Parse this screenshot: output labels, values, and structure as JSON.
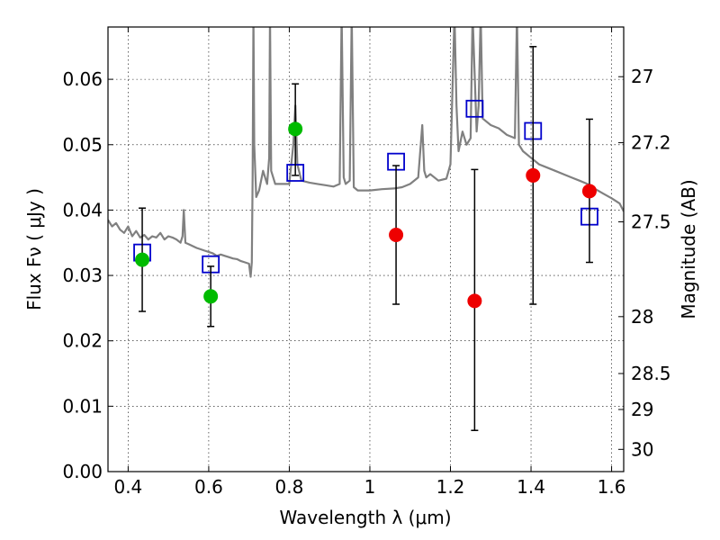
{
  "chart_data": {
    "type": "scatter",
    "xlabel": "Wavelength  λ (μm)",
    "ylabel": "Flux  Fν  ( μJy )",
    "ylabel_right": "Magnitude (AB)",
    "xlim": [
      0.35,
      1.63
    ],
    "ylim": [
      0.0,
      0.068
    ],
    "grid": true,
    "x_ticks": [
      {
        "value": 0.4,
        "label": "0.4"
      },
      {
        "value": 0.6,
        "label": "0.6"
      },
      {
        "value": 0.8,
        "label": "0.8"
      },
      {
        "value": 1.0,
        "label": "1"
      },
      {
        "value": 1.2,
        "label": "1.2"
      },
      {
        "value": 1.4,
        "label": "1.4"
      },
      {
        "value": 1.6,
        "label": "1.6"
      }
    ],
    "y_ticks": [
      {
        "value": 0.0,
        "label": "0.00"
      },
      {
        "value": 0.01,
        "label": "0.01"
      },
      {
        "value": 0.02,
        "label": "0.02"
      },
      {
        "value": 0.03,
        "label": "0.03"
      },
      {
        "value": 0.04,
        "label": "0.04"
      },
      {
        "value": 0.05,
        "label": "0.05"
      },
      {
        "value": 0.06,
        "label": "0.06"
      }
    ],
    "right_ticks": [
      {
        "value": 27.0,
        "label": "27"
      },
      {
        "value": 27.2,
        "label": "27.2"
      },
      {
        "value": 27.5,
        "label": "27.5"
      },
      {
        "value": 28.0,
        "label": "28"
      },
      {
        "value": 28.5,
        "label": "28.5"
      },
      {
        "value": 29.0,
        "label": "29"
      },
      {
        "value": 30.0,
        "label": "30"
      }
    ],
    "right_ticks_flux": [
      0.0604,
      0.0503,
      0.0382,
      0.0237,
      0.015,
      0.0095,
      0.0034
    ],
    "series": [
      {
        "marker": "line",
        "color": "#808080",
        "x": [
          0.35,
          0.36,
          0.37,
          0.38,
          0.39,
          0.4,
          0.41,
          0.42,
          0.43,
          0.44,
          0.45,
          0.46,
          0.47,
          0.48,
          0.49,
          0.5,
          0.51,
          0.52,
          0.53,
          0.535,
          0.538,
          0.542,
          0.55,
          0.56,
          0.57,
          0.58,
          0.59,
          0.6,
          0.61,
          0.62,
          0.63,
          0.64,
          0.65,
          0.66,
          0.67,
          0.68,
          0.69,
          0.7,
          0.704,
          0.707,
          0.709,
          0.711,
          0.713,
          0.718,
          0.725,
          0.735,
          0.745,
          0.75,
          0.752,
          0.755,
          0.765,
          0.78,
          0.8,
          0.81,
          0.815,
          0.82,
          0.83,
          0.85,
          0.87,
          0.89,
          0.91,
          0.925,
          0.93,
          0.935,
          0.94,
          0.95,
          0.955,
          0.96,
          0.97,
          1.0,
          1.03,
          1.06,
          1.08,
          1.1,
          1.12,
          1.13,
          1.135,
          1.14,
          1.15,
          1.17,
          1.19,
          1.2,
          1.21,
          1.215,
          1.22,
          1.23,
          1.24,
          1.25,
          1.255,
          1.265,
          1.27,
          1.275,
          1.28,
          1.3,
          1.32,
          1.34,
          1.36,
          1.365,
          1.37,
          1.38,
          1.4,
          1.42,
          1.44,
          1.46,
          1.48,
          1.5,
          1.52,
          1.54,
          1.56,
          1.58,
          1.6,
          1.62,
          1.63
        ],
        "y": [
          0.0385,
          0.0375,
          0.038,
          0.037,
          0.0365,
          0.0375,
          0.036,
          0.0368,
          0.0358,
          0.0362,
          0.0355,
          0.036,
          0.0358,
          0.0365,
          0.0355,
          0.036,
          0.0358,
          0.0355,
          0.035,
          0.036,
          0.04,
          0.035,
          0.0348,
          0.0345,
          0.0342,
          0.034,
          0.0338,
          0.0336,
          0.0334,
          0.033,
          0.0332,
          0.033,
          0.0328,
          0.0326,
          0.0325,
          0.0322,
          0.032,
          0.0318,
          0.0298,
          0.032,
          0.045,
          0.07,
          0.05,
          0.042,
          0.043,
          0.046,
          0.044,
          0.048,
          0.07,
          0.046,
          0.044,
          0.044,
          0.044,
          0.05,
          0.056,
          0.047,
          0.0445,
          0.0442,
          0.044,
          0.0438,
          0.0436,
          0.044,
          0.07,
          0.045,
          0.044,
          0.0445,
          0.07,
          0.0435,
          0.043,
          0.043,
          0.0432,
          0.0433,
          0.0435,
          0.044,
          0.045,
          0.053,
          0.046,
          0.045,
          0.0455,
          0.0445,
          0.0448,
          0.047,
          0.07,
          0.056,
          0.049,
          0.052,
          0.05,
          0.051,
          0.07,
          0.052,
          0.056,
          0.07,
          0.054,
          0.053,
          0.0525,
          0.0515,
          0.051,
          0.07,
          0.05,
          0.049,
          0.048,
          0.047,
          0.0465,
          0.046,
          0.0455,
          0.045,
          0.0445,
          0.044,
          0.0432,
          0.0425,
          0.0418,
          0.041,
          0.0398
        ]
      },
      {
        "marker": "open-square",
        "color": "#0000cc",
        "x": [
          0.435,
          0.605,
          0.815,
          1.065,
          1.26,
          1.405,
          1.545
        ],
        "y": [
          0.0335,
          0.0317,
          0.0457,
          0.0474,
          0.0555,
          0.0521,
          0.039
        ]
      },
      {
        "marker": "filled-circle",
        "color": "#00bb00",
        "x": [
          0.435,
          0.605,
          0.815
        ],
        "y": [
          0.0324,
          0.0268,
          0.0524
        ],
        "yerr_low": [
          0.0245,
          0.0222,
          0.0453
        ],
        "yerr_high": [
          0.0403,
          0.0314,
          0.0593
        ]
      },
      {
        "marker": "filled-circle",
        "color": "#ee0000",
        "x": [
          1.065,
          1.26,
          1.405,
          1.545
        ],
        "y": [
          0.0362,
          0.0261,
          0.0453,
          0.0429
        ],
        "yerr_low": [
          0.0256,
          0.0063,
          0.0256,
          0.032
        ],
        "yerr_high": [
          0.0468,
          0.0462,
          0.065,
          0.0539
        ]
      }
    ]
  }
}
